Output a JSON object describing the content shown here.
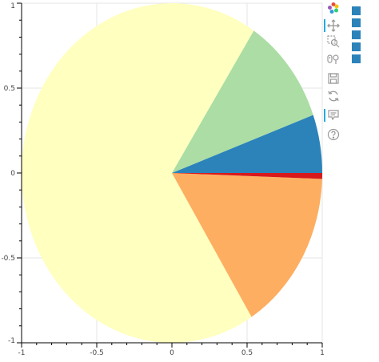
{
  "chart_data": {
    "type": "pie",
    "x_ticks": [
      "-1",
      "-0.5",
      "0",
      "0.5",
      "1"
    ],
    "y_ticks": [
      "1",
      "0.5",
      "0",
      "-0.5",
      "-1"
    ],
    "xlim": [
      -1,
      1
    ],
    "ylim": [
      -1,
      1
    ],
    "grid": true,
    "slices": [
      {
        "start_deg": 0.0,
        "end_deg": 20.0,
        "color": "#2b83ba"
      },
      {
        "start_deg": 20.0,
        "end_deg": 57.0,
        "color": "#abdda4"
      },
      {
        "start_deg": 57.0,
        "end_deg": 302.0,
        "color": "#ffffbf"
      },
      {
        "start_deg": 302.0,
        "end_deg": 358.0,
        "color": "#fdae61"
      },
      {
        "start_deg": 358.0,
        "end_deg": 360.0,
        "color": "#d7191c"
      }
    ],
    "legend_colors": [
      "#2b83ba",
      "#2b83ba",
      "#2b83ba",
      "#2b83ba",
      "#2b83ba"
    ]
  },
  "toolbar": {
    "tools": [
      {
        "icon": "bokeh-logo-icon",
        "active": false
      },
      {
        "icon": "pan-icon",
        "active": true
      },
      {
        "icon": "box-zoom-icon",
        "active": false
      },
      {
        "icon": "wheel-zoom-icon",
        "active": false
      },
      {
        "icon": "save-icon",
        "active": false
      },
      {
        "icon": "reset-icon",
        "active": false
      },
      {
        "icon": "hover-icon",
        "active": true
      },
      {
        "icon": "help-icon",
        "active": false
      }
    ]
  }
}
